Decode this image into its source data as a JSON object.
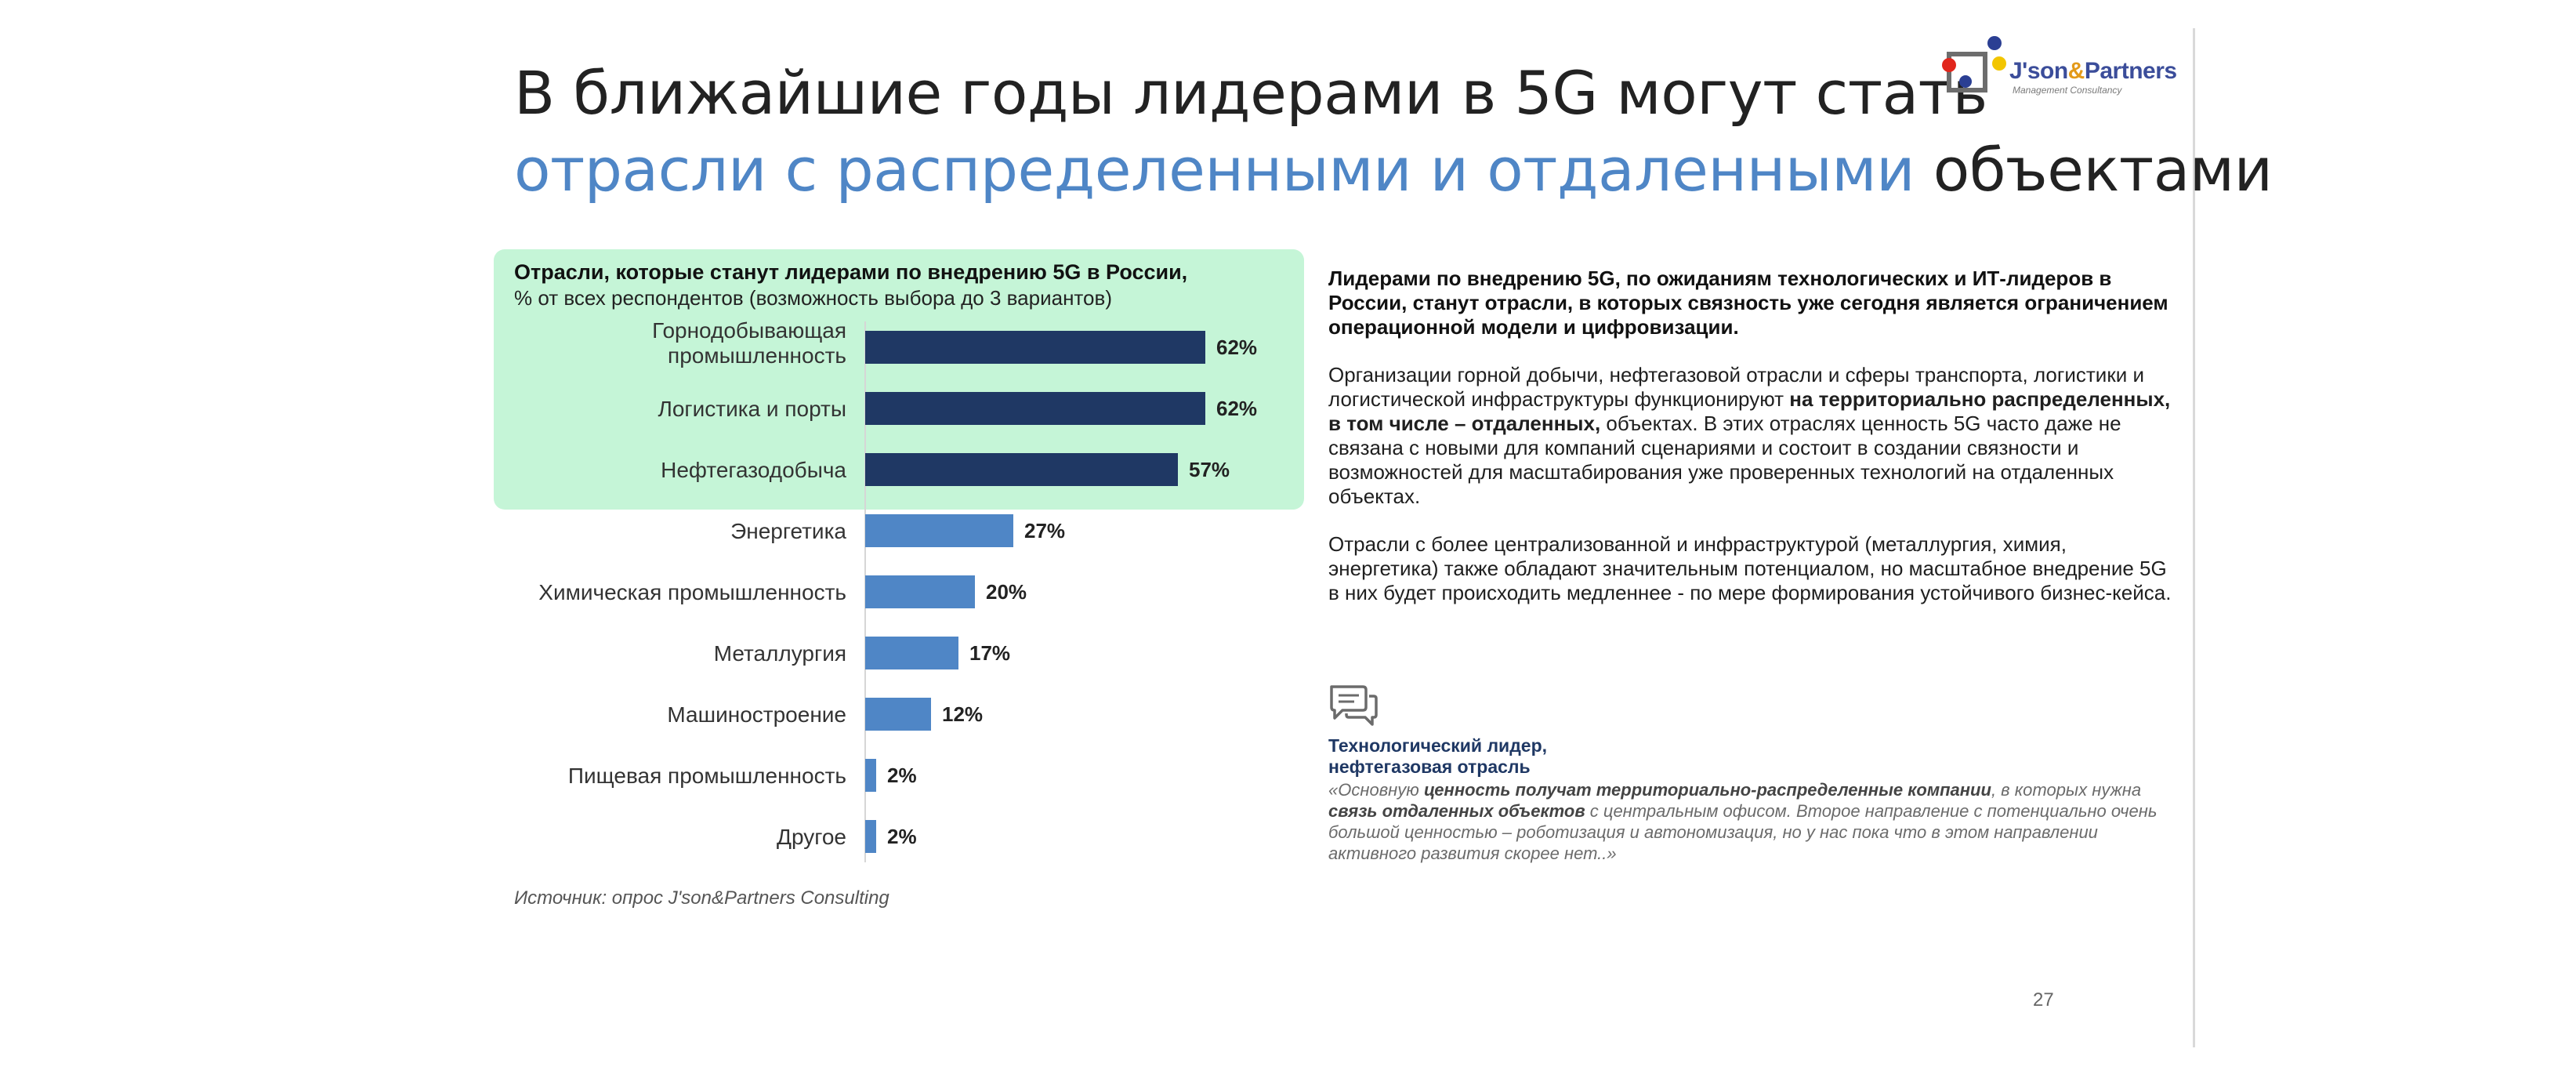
{
  "title": {
    "line1": "В ближайшие годы лидерами в 5G могут стать",
    "line2_accent": "отрасли с распределенными и отдаленными",
    "line2_rest": " объектами"
  },
  "logo": {
    "name_a": "J'son",
    "name_amp": "&",
    "name_b": "Partners",
    "sub": "Management Consultancy"
  },
  "chart_heading": {
    "title": "Отрасли, которые станут лидерами по внедрению 5G в России,",
    "subtitle": "% от всех респондентов (возможность выбора до 3 вариантов)"
  },
  "chart_data": {
    "type": "bar",
    "orientation": "horizontal",
    "title": "Отрасли, которые станут лидерами по внедрению 5G в России,",
    "subtitle": "% от всех респондентов (возможность выбора до 3 вариантов)",
    "categories": [
      [
        "Горнодобывающая",
        "промышленность"
      ],
      [
        "Логистика и порты"
      ],
      [
        "Нефтегазодобыча"
      ],
      [
        "Энергетика"
      ],
      [
        "Химическая промышленность"
      ],
      [
        "Металлургия"
      ],
      [
        "Машиностроение"
      ],
      [
        "Пищевая промышленность"
      ],
      [
        "Другое"
      ]
    ],
    "values": [
      62,
      62,
      57,
      27,
      20,
      17,
      12,
      2,
      2
    ],
    "value_labels": [
      "62%",
      "62%",
      "57%",
      "27%",
      "20%",
      "17%",
      "12%",
      "2%",
      "2%"
    ],
    "highlighted_count": 3,
    "colors": {
      "highlight_bar": "#1f3864",
      "bar": "#4f86c6",
      "highlight_bg": "#c5f5d7"
    },
    "xlim": [
      0,
      100
    ],
    "grid": false,
    "legend": "none"
  },
  "source": "Источник: опрос J'son&Partners Consulting",
  "right": {
    "lead": "Лидерами по внедрению 5G, по ожиданиям технологических и ИТ-лидеров в России, станут отрасли, в которых связность уже сегодня является ограничением операционной модели и цифровизации.",
    "p2_a": "Организации горной добычи, нефтегазовой отрасли и сферы транспорта, логистики и логистической инфраструктуры функционируют ",
    "p2_b": "на территориально распределенных, в том числе – отдаленных,",
    "p2_c": " объектах. В этих отраслях ценность 5G часто даже не связана с новыми для компаний сценариями и состоит в создании связности и возможностей для масштабирования уже проверенных технологий на отдаленных объектах.",
    "p3": "Отрасли с более централизованной и инфраструктурой (металлургия, химия, энергетика) также обладают значительным потенциалом, но масштабное внедрение 5G в них будет происходить медленнее - по мере формирования устойчивого бизнес-кейса.",
    "icon": "chat-bubbles-icon"
  },
  "quote": {
    "author_line1": "Технологический лидер,",
    "author_line2": "нефтегазовая отрасль",
    "t1": "«Основную ",
    "t2": "ценность получат территориально-распределенные компании",
    "t3": ", в которых нужна ",
    "t4": "связь отдаленных объектов",
    "t5": " с центральным офисом.  Второе направление с потенциально очень большой ценностью  – роботизация и автономизация, но у нас пока что в этом направлении активного развития скорее нет..»"
  },
  "page_number": "27"
}
